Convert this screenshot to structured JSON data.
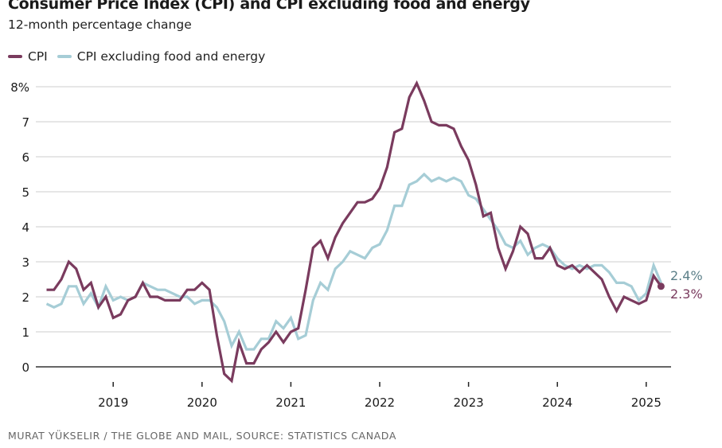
{
  "chart_data": {
    "type": "line",
    "title": "Consumer Price Index (CPI) and CPI excluding food and energy",
    "subtitle": "12-month percentage change",
    "xlabel": "",
    "ylabel": "",
    "ylim": [
      -0.5,
      8
    ],
    "grid": true,
    "legend_position": "top-left",
    "y_ticks": [
      0,
      1,
      2,
      3,
      4,
      5,
      6,
      7,
      8
    ],
    "y_tick_labels": [
      "0",
      "1",
      "2",
      "3",
      "4",
      "5",
      "6",
      "7",
      "8%"
    ],
    "x_ticks": [
      "2019",
      "2020",
      "2021",
      "2022",
      "2023",
      "2024",
      "2025"
    ],
    "x_start": "2018-04",
    "x_end": "2025-03",
    "frequency": "monthly",
    "series": [
      {
        "name": "CPI",
        "color": "#7a3b5e",
        "end_label": "2.3%",
        "values": [
          2.2,
          2.2,
          2.5,
          3.0,
          2.8,
          2.2,
          2.4,
          1.7,
          2.0,
          1.4,
          1.5,
          1.9,
          2.0,
          2.4,
          2.0,
          2.0,
          1.9,
          1.9,
          1.9,
          2.2,
          2.2,
          2.4,
          2.2,
          0.9,
          -0.2,
          -0.4,
          0.7,
          0.1,
          0.1,
          0.5,
          0.7,
          1.0,
          0.7,
          1.0,
          1.1,
          2.2,
          3.4,
          3.6,
          3.1,
          3.7,
          4.1,
          4.4,
          4.7,
          4.7,
          4.8,
          5.1,
          5.7,
          6.7,
          6.8,
          7.7,
          8.1,
          7.6,
          7.0,
          6.9,
          6.9,
          6.8,
          6.3,
          5.9,
          5.2,
          4.3,
          4.4,
          3.4,
          2.8,
          3.3,
          4.0,
          3.8,
          3.1,
          3.1,
          3.4,
          2.9,
          2.8,
          2.9,
          2.7,
          2.9,
          2.7,
          2.5,
          2.0,
          1.6,
          2.0,
          1.9,
          1.8,
          1.9,
          2.6,
          2.3
        ]
      },
      {
        "name": "CPI excluding food and energy",
        "color": "#a6cdd6",
        "end_label": "2.4%",
        "values": [
          1.8,
          1.7,
          1.8,
          2.3,
          2.3,
          1.8,
          2.1,
          1.7,
          2.3,
          1.9,
          2.0,
          1.9,
          2.0,
          2.4,
          2.3,
          2.2,
          2.2,
          2.1,
          2.0,
          2.0,
          1.8,
          1.9,
          1.9,
          1.7,
          1.3,
          0.6,
          1.0,
          0.5,
          0.5,
          0.8,
          0.8,
          1.3,
          1.1,
          1.4,
          0.8,
          0.9,
          1.9,
          2.4,
          2.2,
          2.8,
          3.0,
          3.3,
          3.2,
          3.1,
          3.4,
          3.5,
          3.9,
          4.6,
          4.6,
          5.2,
          5.3,
          5.5,
          5.3,
          5.4,
          5.3,
          5.4,
          5.3,
          4.9,
          4.8,
          4.5,
          4.2,
          3.9,
          3.5,
          3.4,
          3.6,
          3.2,
          3.4,
          3.5,
          3.4,
          3.1,
          2.9,
          2.8,
          2.9,
          2.8,
          2.9,
          2.9,
          2.7,
          2.4,
          2.4,
          2.3,
          1.9,
          2.1,
          2.9,
          2.4
        ]
      }
    ],
    "end_label_colors": {
      "CPI": "#7a3b5e",
      "CPI excluding food and energy": "#5b7f88"
    }
  },
  "legend": [
    {
      "label": "CPI",
      "color": "#7a3b5e"
    },
    {
      "label": "CPI excluding food and energy",
      "color": "#a6cdd6"
    }
  ],
  "source": "MURAT YÜKSELIR / THE GLOBE AND MAIL, SOURCE: STATISTICS CANADA"
}
